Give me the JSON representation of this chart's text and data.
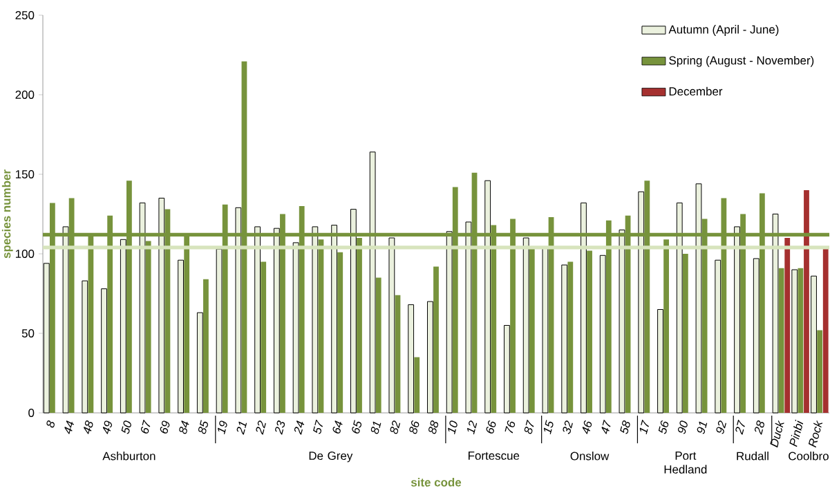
{
  "chart_data": {
    "type": "bar",
    "xlabel": "site code",
    "ylabel": "species number",
    "categories": [
      "8",
      "44",
      "48",
      "49",
      "50",
      "67",
      "69",
      "84",
      "85",
      "19",
      "21",
      "22",
      "23",
      "24",
      "57",
      "64",
      "65",
      "81",
      "82",
      "86",
      "88",
      "10",
      "12",
      "66",
      "76",
      "87",
      "15",
      "32",
      "46",
      "47",
      "58",
      "17",
      "56",
      "90",
      "91",
      "92",
      "27",
      "28",
      "Duck",
      "Pinbi",
      "Rock"
    ],
    "series": [
      {
        "name": "Autumn (April - June)",
        "color": "#ebf1de",
        "values": [
          94,
          117,
          83,
          78,
          109,
          132,
          135,
          96,
          63,
          103,
          129,
          117,
          116,
          107,
          117,
          118,
          128,
          164,
          110,
          68,
          70,
          114,
          120,
          146,
          55,
          110,
          104,
          93,
          132,
          99,
          115,
          139,
          65,
          132,
          144,
          96,
          117,
          97,
          125,
          90,
          86
        ]
      },
      {
        "name": "Spring (August - November)",
        "color": "#77933c",
        "values": [
          132,
          135,
          112,
          124,
          146,
          108,
          128,
          112,
          84,
          131,
          221,
          95,
          125,
          130,
          109,
          101,
          110,
          85,
          74,
          35,
          92,
          142,
          151,
          118,
          122,
          104,
          123,
          95,
          102,
          121,
          124,
          146,
          109,
          100,
          122,
          135,
          125,
          138,
          91,
          91,
          52
        ]
      },
      {
        "name": "December",
        "color": "#a5302f",
        "values": [
          null,
          null,
          null,
          null,
          null,
          null,
          null,
          null,
          null,
          null,
          null,
          null,
          null,
          null,
          null,
          null,
          null,
          null,
          null,
          null,
          null,
          null,
          null,
          null,
          null,
          null,
          null,
          null,
          null,
          null,
          null,
          null,
          null,
          null,
          null,
          null,
          null,
          null,
          110,
          140,
          103
        ]
      }
    ],
    "ylim": [
      0,
      250
    ],
    "yticks": [
      0,
      50,
      100,
      150,
      200,
      250
    ],
    "ref_lines": [
      {
        "axis": "y",
        "value": 112,
        "color": "#77933c"
      },
      {
        "axis": "y",
        "value": 104,
        "color": "#d7e4bd"
      }
    ],
    "annotations": [
      "Ashburton",
      "De Grey",
      "Fortescue",
      "Onslow",
      "Port Hedland",
      "Rudall",
      "Coolbro"
    ],
    "legend": "top right"
  }
}
